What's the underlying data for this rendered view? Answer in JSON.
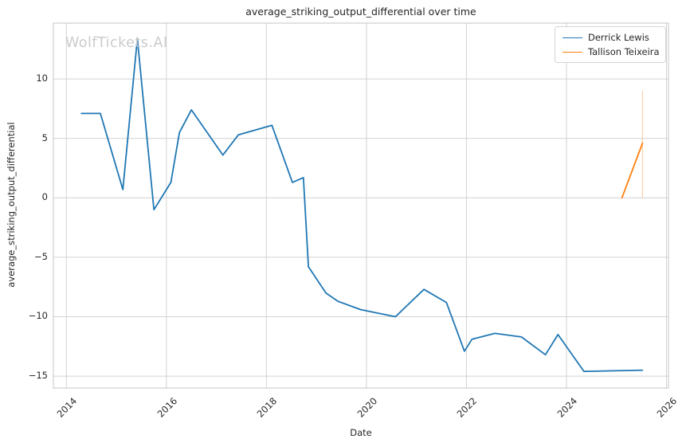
{
  "figure": {
    "title": "average_striking_output_differential over time",
    "xlabel": "Date",
    "ylabel": "average_striking_output_differential",
    "watermark": "WolfTickets.AI"
  },
  "legend": {
    "position": "upper right",
    "items": [
      {
        "label": "Derrick Lewis",
        "color": "#1f77b4"
      },
      {
        "label": "Tallison Teixeira",
        "color": "#ff7f0e"
      }
    ]
  },
  "colors": {
    "background": "#ffffff",
    "grid": "#d2d2d2",
    "spine": "#c4c4c4",
    "text": "#262626",
    "watermark": "#cbcbcb",
    "series_blue": "#1f77b4",
    "series_orange": "#ff7f0e"
  },
  "chart_data": {
    "type": "line",
    "title": "average_striking_output_differential over time",
    "xlabel": "Date",
    "ylabel": "average_striking_output_differential",
    "xlim": [
      2013.74,
      2026.04
    ],
    "ylim": [
      -16.0,
      14.7
    ],
    "x_ticks": [
      2014,
      2016,
      2018,
      2020,
      2022,
      2024,
      2026
    ],
    "x_tick_labels": [
      "2014",
      "2016",
      "2018",
      "2020",
      "2022",
      "2024",
      "2026"
    ],
    "y_ticks": [
      -15,
      -10,
      -5,
      0,
      5,
      10
    ],
    "y_tick_labels": [
      "−15",
      "−10",
      "−5",
      "0",
      "5",
      "10"
    ],
    "grid": true,
    "legend_position": "upper right",
    "series": [
      {
        "name": "Derrick Lewis",
        "color": "#1f77b4",
        "x": [
          2014.3,
          2014.68,
          2015.13,
          2015.42,
          2015.75,
          2016.09,
          2016.26,
          2016.5,
          2017.13,
          2017.44,
          2018.11,
          2018.52,
          2018.74,
          2018.84,
          2019.19,
          2019.43,
          2019.88,
          2020.58,
          2021.15,
          2021.6,
          2021.96,
          2022.11,
          2022.57,
          2023.1,
          2023.58,
          2023.83,
          2024.35,
          2025.52
        ],
        "y": [
          7.1,
          7.1,
          0.7,
          13.4,
          -1.0,
          1.3,
          5.5,
          7.4,
          3.6,
          5.3,
          6.1,
          1.3,
          1.7,
          -5.8,
          -8.0,
          -8.7,
          -9.4,
          -10.0,
          -7.7,
          -8.8,
          -12.9,
          -11.9,
          -11.4,
          -11.7,
          -13.2,
          -11.5,
          -14.6,
          -14.5
        ]
      },
      {
        "name": "Tallison Teixeira",
        "color": "#ff7f0e",
        "x": [
          2025.11,
          2025.52
        ],
        "y": [
          0.0,
          4.6
        ]
      }
    ],
    "error_bar": {
      "series": "Tallison Teixeira",
      "x": 2025.52,
      "y_low": 0.0,
      "y_high": 9.0,
      "color": "#ff7f0e",
      "opacity": 0.35
    }
  }
}
